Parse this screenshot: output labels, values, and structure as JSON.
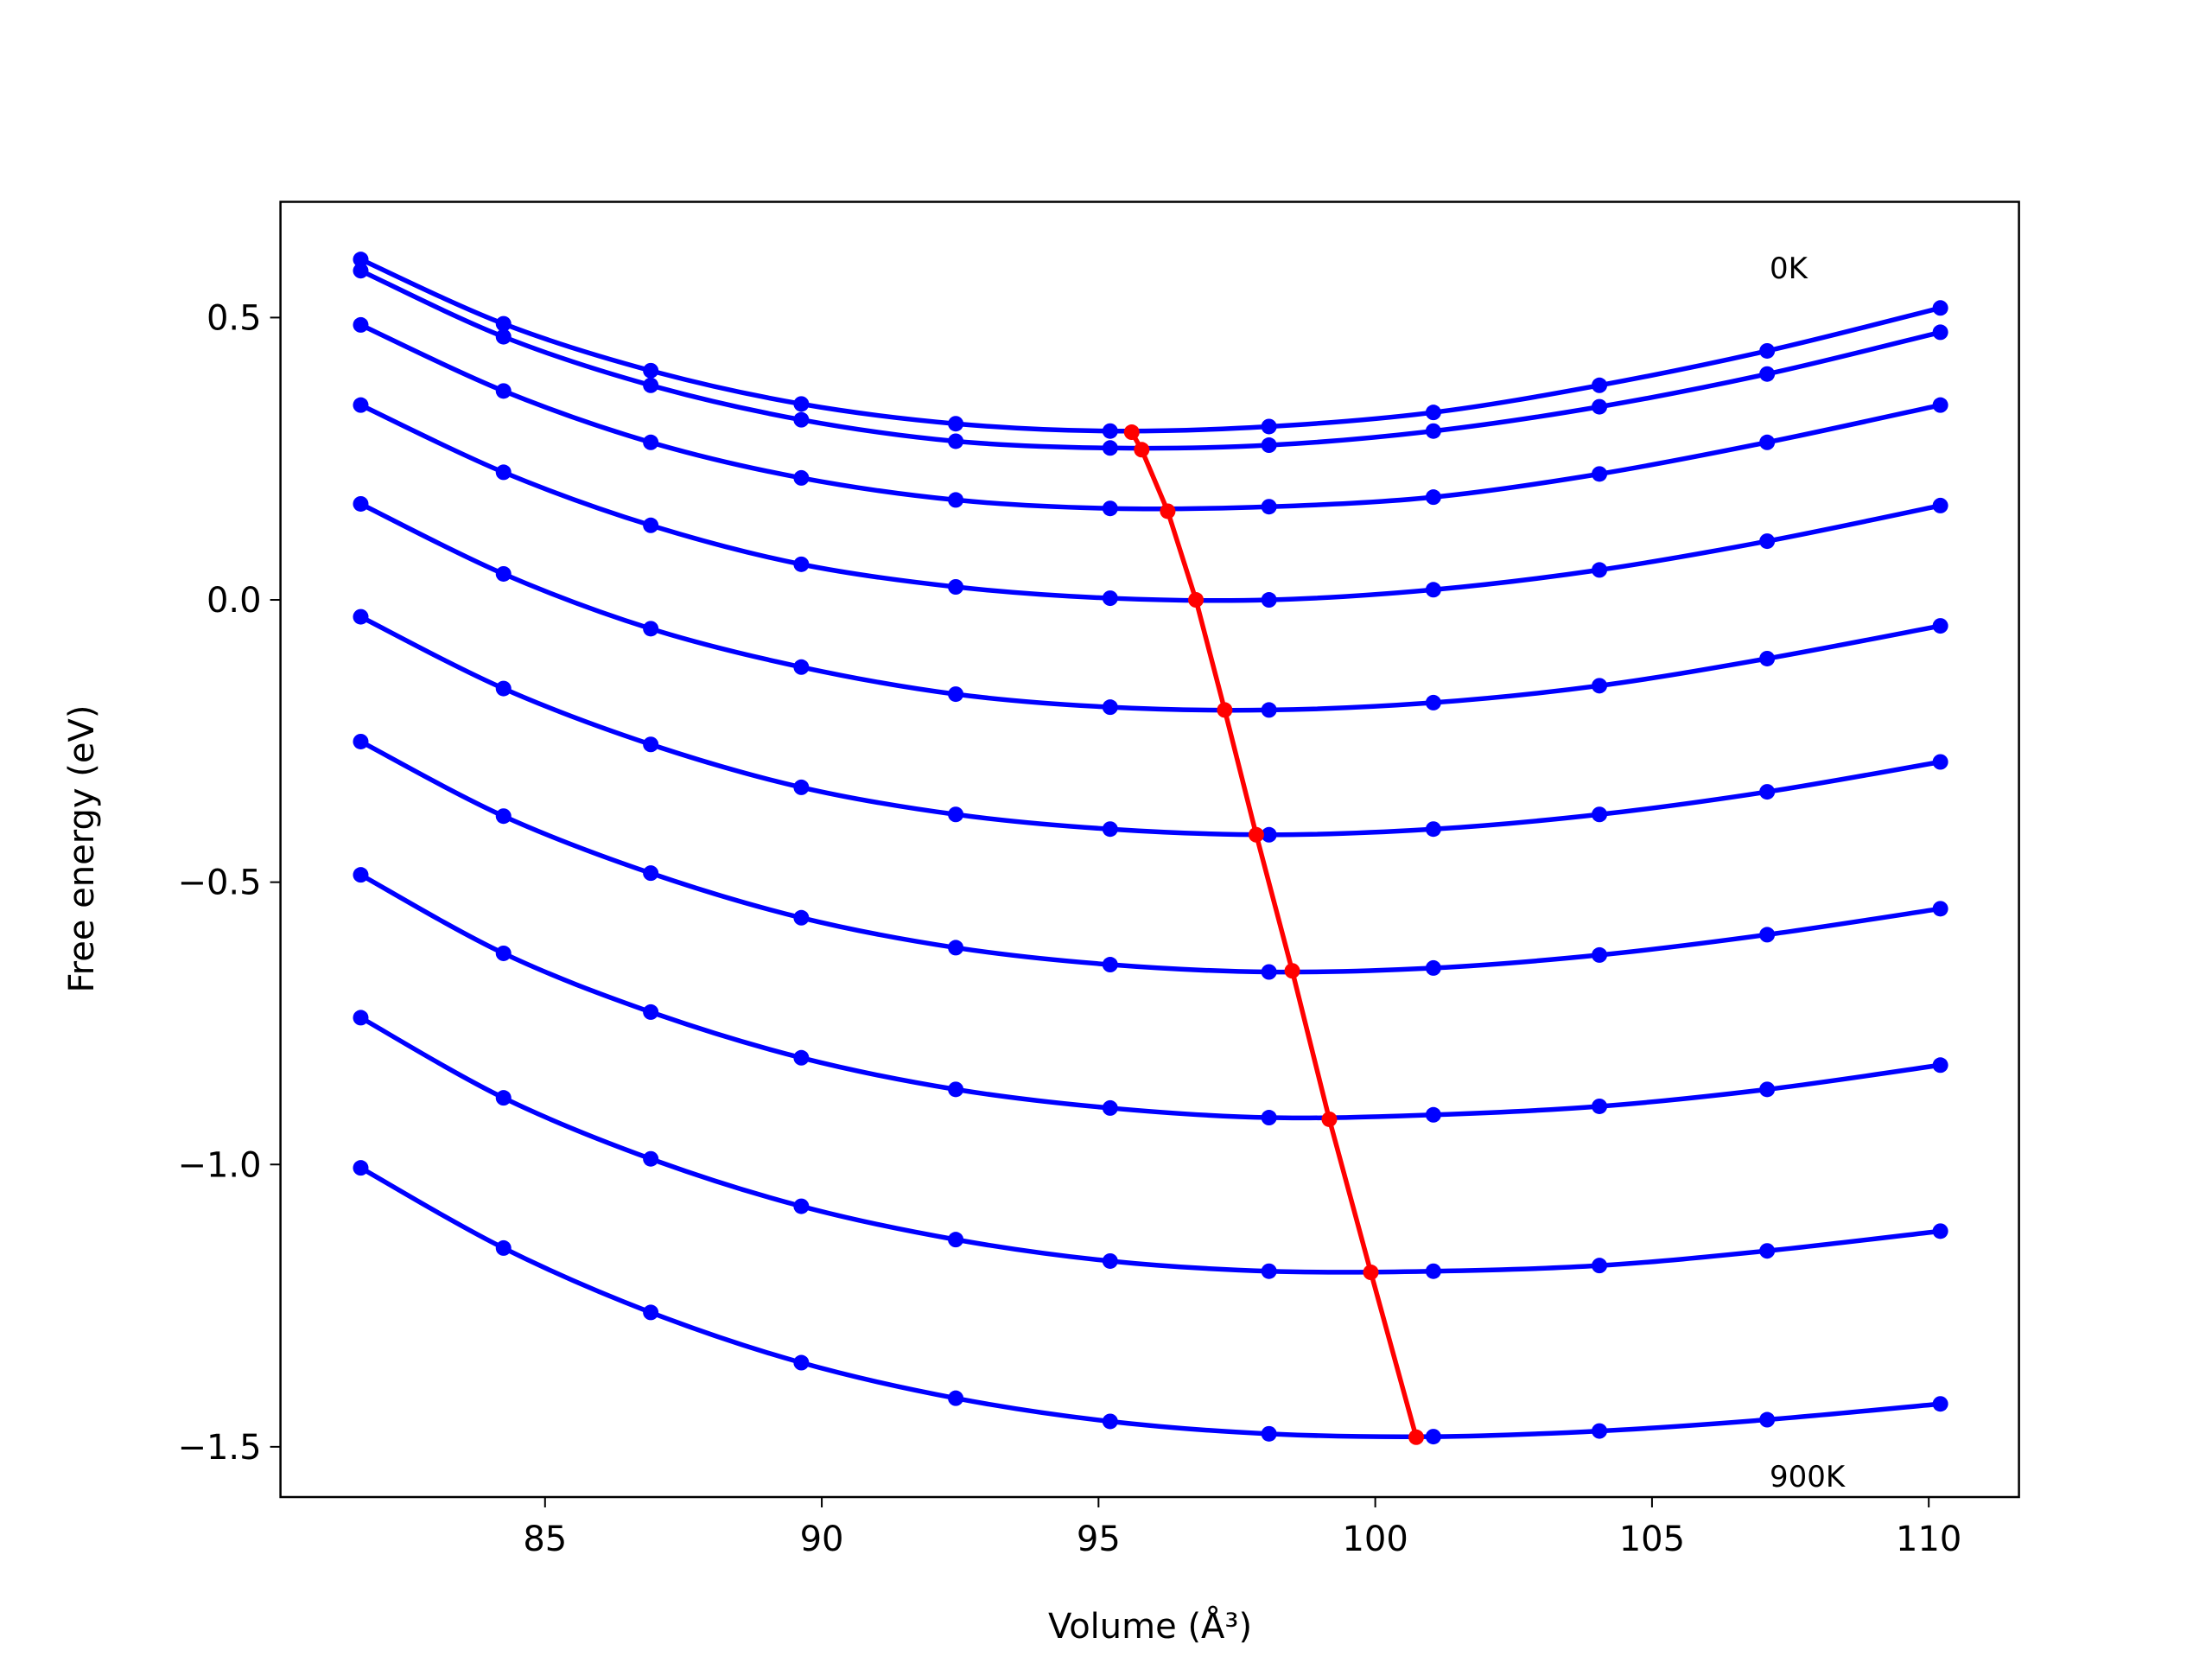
{
  "chart_data": {
    "type": "line",
    "xlabel": "Volume (Å³)",
    "ylabel": "Free energy (eV)",
    "annotations": [
      "0K",
      "900K"
    ],
    "xlim": [
      80.22,
      111.63
    ],
    "ylim": [
      -1.589,
      0.705
    ],
    "xticks": [
      85,
      90,
      95,
      100,
      105,
      110
    ],
    "yticks": [
      {
        "value": -1.5,
        "label": "−1.5"
      },
      {
        "value": -1.0,
        "label": "−1.0"
      },
      {
        "value": -0.5,
        "label": "−0.5"
      },
      {
        "value": 0,
        "label": "0.0"
      },
      0.5
    ],
    "x": [
      81.67,
      84.25,
      86.91,
      89.63,
      92.42,
      95.21,
      98.08,
      101.05,
      104.05,
      107.08,
      110.21
    ],
    "series": [
      {
        "color": "#0000ff",
        "values": [
          0.603,
          0.489,
          0.406,
          0.347,
          0.312,
          0.299,
          0.307,
          0.332,
          0.38,
          0.441,
          0.517
        ]
      },
      {
        "color": "#0000ff",
        "values": [
          0.583,
          0.466,
          0.38,
          0.319,
          0.281,
          0.269,
          0.274,
          0.299,
          0.342,
          0.4,
          0.474
        ]
      },
      {
        "color": "#0000ff",
        "values": [
          0.487,
          0.37,
          0.279,
          0.216,
          0.177,
          0.162,
          0.165,
          0.182,
          0.223,
          0.279,
          0.345
        ]
      },
      {
        "color": "#0000ff",
        "values": [
          0.345,
          0.226,
          0.132,
          0.063,
          0.023,
          0.003,
          0.0,
          0.018,
          0.053,
          0.104,
          0.167
        ]
      },
      {
        "color": "#0000ff",
        "values": [
          0.17,
          0.046,
          -0.051,
          -0.119,
          -0.167,
          -0.19,
          -0.195,
          -0.182,
          -0.152,
          -0.104,
          -0.046
        ]
      },
      {
        "color": "#0000ff",
        "values": [
          -0.03,
          -0.157,
          -0.256,
          -0.332,
          -0.38,
          -0.406,
          -0.416,
          -0.406,
          -0.38,
          -0.34,
          -0.287
        ]
      },
      {
        "color": "#0000ff",
        "values": [
          -0.251,
          -0.383,
          -0.484,
          -0.563,
          -0.616,
          -0.646,
          -0.659,
          -0.652,
          -0.629,
          -0.593,
          -0.547
        ]
      },
      {
        "color": "#0000ff",
        "values": [
          -0.487,
          -0.626,
          -0.73,
          -0.811,
          -0.867,
          -0.9,
          -0.917,
          -0.912,
          -0.897,
          -0.867,
          -0.824
        ]
      },
      {
        "color": "#0000ff",
        "values": [
          -0.74,
          -0.882,
          -0.99,
          -1.074,
          -1.133,
          -1.171,
          -1.189,
          -1.189,
          -1.179,
          -1.153,
          -1.118
        ]
      },
      {
        "color": "#0000ff",
        "values": [
          -1.006,
          -1.148,
          -1.262,
          -1.351,
          -1.414,
          -1.455,
          -1.477,
          -1.482,
          -1.472,
          -1.452,
          -1.424
        ]
      },
      {
        "color": "#ff0000",
        "x": [
          95.6,
          95.78,
          96.25,
          96.76,
          97.28,
          97.85,
          98.5,
          99.17,
          99.92,
          100.74
        ],
        "values": [
          0.297,
          0.266,
          0.157,
          0.0,
          -0.195,
          -0.416,
          -0.657,
          -0.92,
          -1.191,
          -1.483
        ]
      }
    ]
  }
}
